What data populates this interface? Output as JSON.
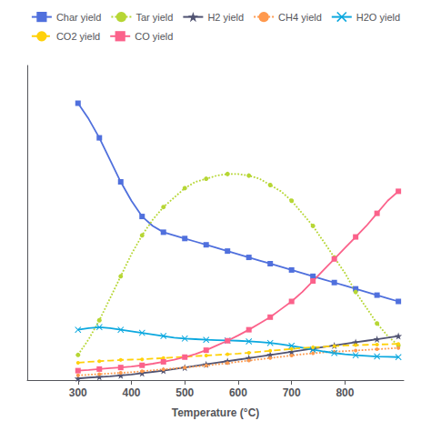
{
  "chart_data": {
    "type": "line",
    "xlabel": "Temperature (°C)",
    "x": [
      300,
      320,
      340,
      360,
      380,
      400,
      420,
      440,
      460,
      480,
      500,
      520,
      540,
      560,
      580,
      600,
      620,
      640,
      660,
      680,
      700,
      720,
      740,
      760,
      780,
      800,
      820,
      840,
      860,
      880,
      900
    ],
    "series": [
      {
        "name": "Char yield",
        "line_style": "solid",
        "marker": "square",
        "values": [
          88,
          83,
          77,
          70,
          63,
          57,
          52,
          49,
          47,
          46,
          45,
          44,
          43,
          42,
          41,
          40,
          39,
          38,
          37,
          36,
          35,
          34,
          33,
          32,
          31,
          30,
          29,
          28,
          27,
          26,
          25
        ]
      },
      {
        "name": "Tar yield",
        "line_style": "dotted",
        "marker": "circle",
        "values": [
          8,
          13,
          19,
          26,
          33,
          40,
          46,
          51,
          55,
          58,
          61,
          63,
          64,
          65,
          65.5,
          65.5,
          65,
          64,
          62,
          60,
          57,
          53,
          49,
          44,
          39,
          34,
          28,
          23,
          18,
          14,
          11
        ]
      },
      {
        "name": "H2 yield",
        "line_style": "solid",
        "marker": "star",
        "values": [
          0.5,
          0.8,
          1.0,
          1.2,
          1.5,
          1.8,
          2.2,
          2.6,
          3.0,
          3.5,
          4.0,
          4.5,
          5.0,
          5.5,
          6.0,
          6.5,
          7.0,
          7.5,
          8.0,
          8.5,
          9.0,
          9.5,
          10.0,
          10.5,
          11.0,
          11.5,
          12.0,
          12.5,
          13.0,
          13.5,
          14.0
        ]
      },
      {
        "name": "CH4 yield",
        "line_style": "dotted",
        "marker": "point",
        "values": [
          1.5,
          1.7,
          1.9,
          2.1,
          2.3,
          2.5,
          2.8,
          3.1,
          3.4,
          3.7,
          4.0,
          4.3,
          4.6,
          5.0,
          5.4,
          5.8,
          6.2,
          6.6,
          7.0,
          7.4,
          7.8,
          8.2,
          8.5,
          8.8,
          9.0,
          9.2,
          9.4,
          9.6,
          9.8,
          10.0,
          10.2
        ]
      },
      {
        "name": "H2O yield",
        "line_style": "solid",
        "marker": "x",
        "values": [
          16,
          16.5,
          16.8,
          16.5,
          16.0,
          15.5,
          15.0,
          14.5,
          14.0,
          13.5,
          13.2,
          13.0,
          12.8,
          12.7,
          12.6,
          12.5,
          12.3,
          12.1,
          11.8,
          11.4,
          10.9,
          10.3,
          9.7,
          9.1,
          8.6,
          8.2,
          7.9,
          7.7,
          7.5,
          7.4,
          7.3
        ]
      },
      {
        "name": "CO2 yield",
        "line_style": "dashed",
        "marker": "point",
        "values": [
          5.5,
          5.8,
          6.0,
          6.2,
          6.4,
          6.5,
          6.6,
          6.8,
          7.0,
          7.2,
          7.4,
          7.6,
          7.8,
          8.0,
          8.2,
          8.4,
          8.7,
          9.0,
          9.3,
          9.6,
          9.9,
          10.2,
          10.4,
          10.6,
          10.8,
          11.0,
          11.1,
          11.2,
          11.3,
          11.4,
          11.5
        ]
      },
      {
        "name": "CO yield",
        "line_style": "solid",
        "marker": "square",
        "values": [
          3.0,
          3.2,
          3.5,
          3.8,
          4.0,
          4.3,
          4.7,
          5.2,
          5.8,
          6.5,
          7.3,
          8.3,
          9.5,
          11.0,
          12.5,
          14.2,
          16.0,
          18.0,
          20.0,
          22.5,
          25.0,
          28.0,
          31.5,
          35.0,
          38.5,
          42.0,
          45.5,
          49.0,
          53.0,
          57.0,
          60.0
        ]
      }
    ],
    "xlim": [
      205,
      910
    ],
    "xticks": [
      300,
      400,
      500,
      600,
      700,
      800
    ],
    "ylim": [
      0,
      100
    ],
    "tick_labels": "x",
    "grid": false,
    "legend": "top"
  }
}
